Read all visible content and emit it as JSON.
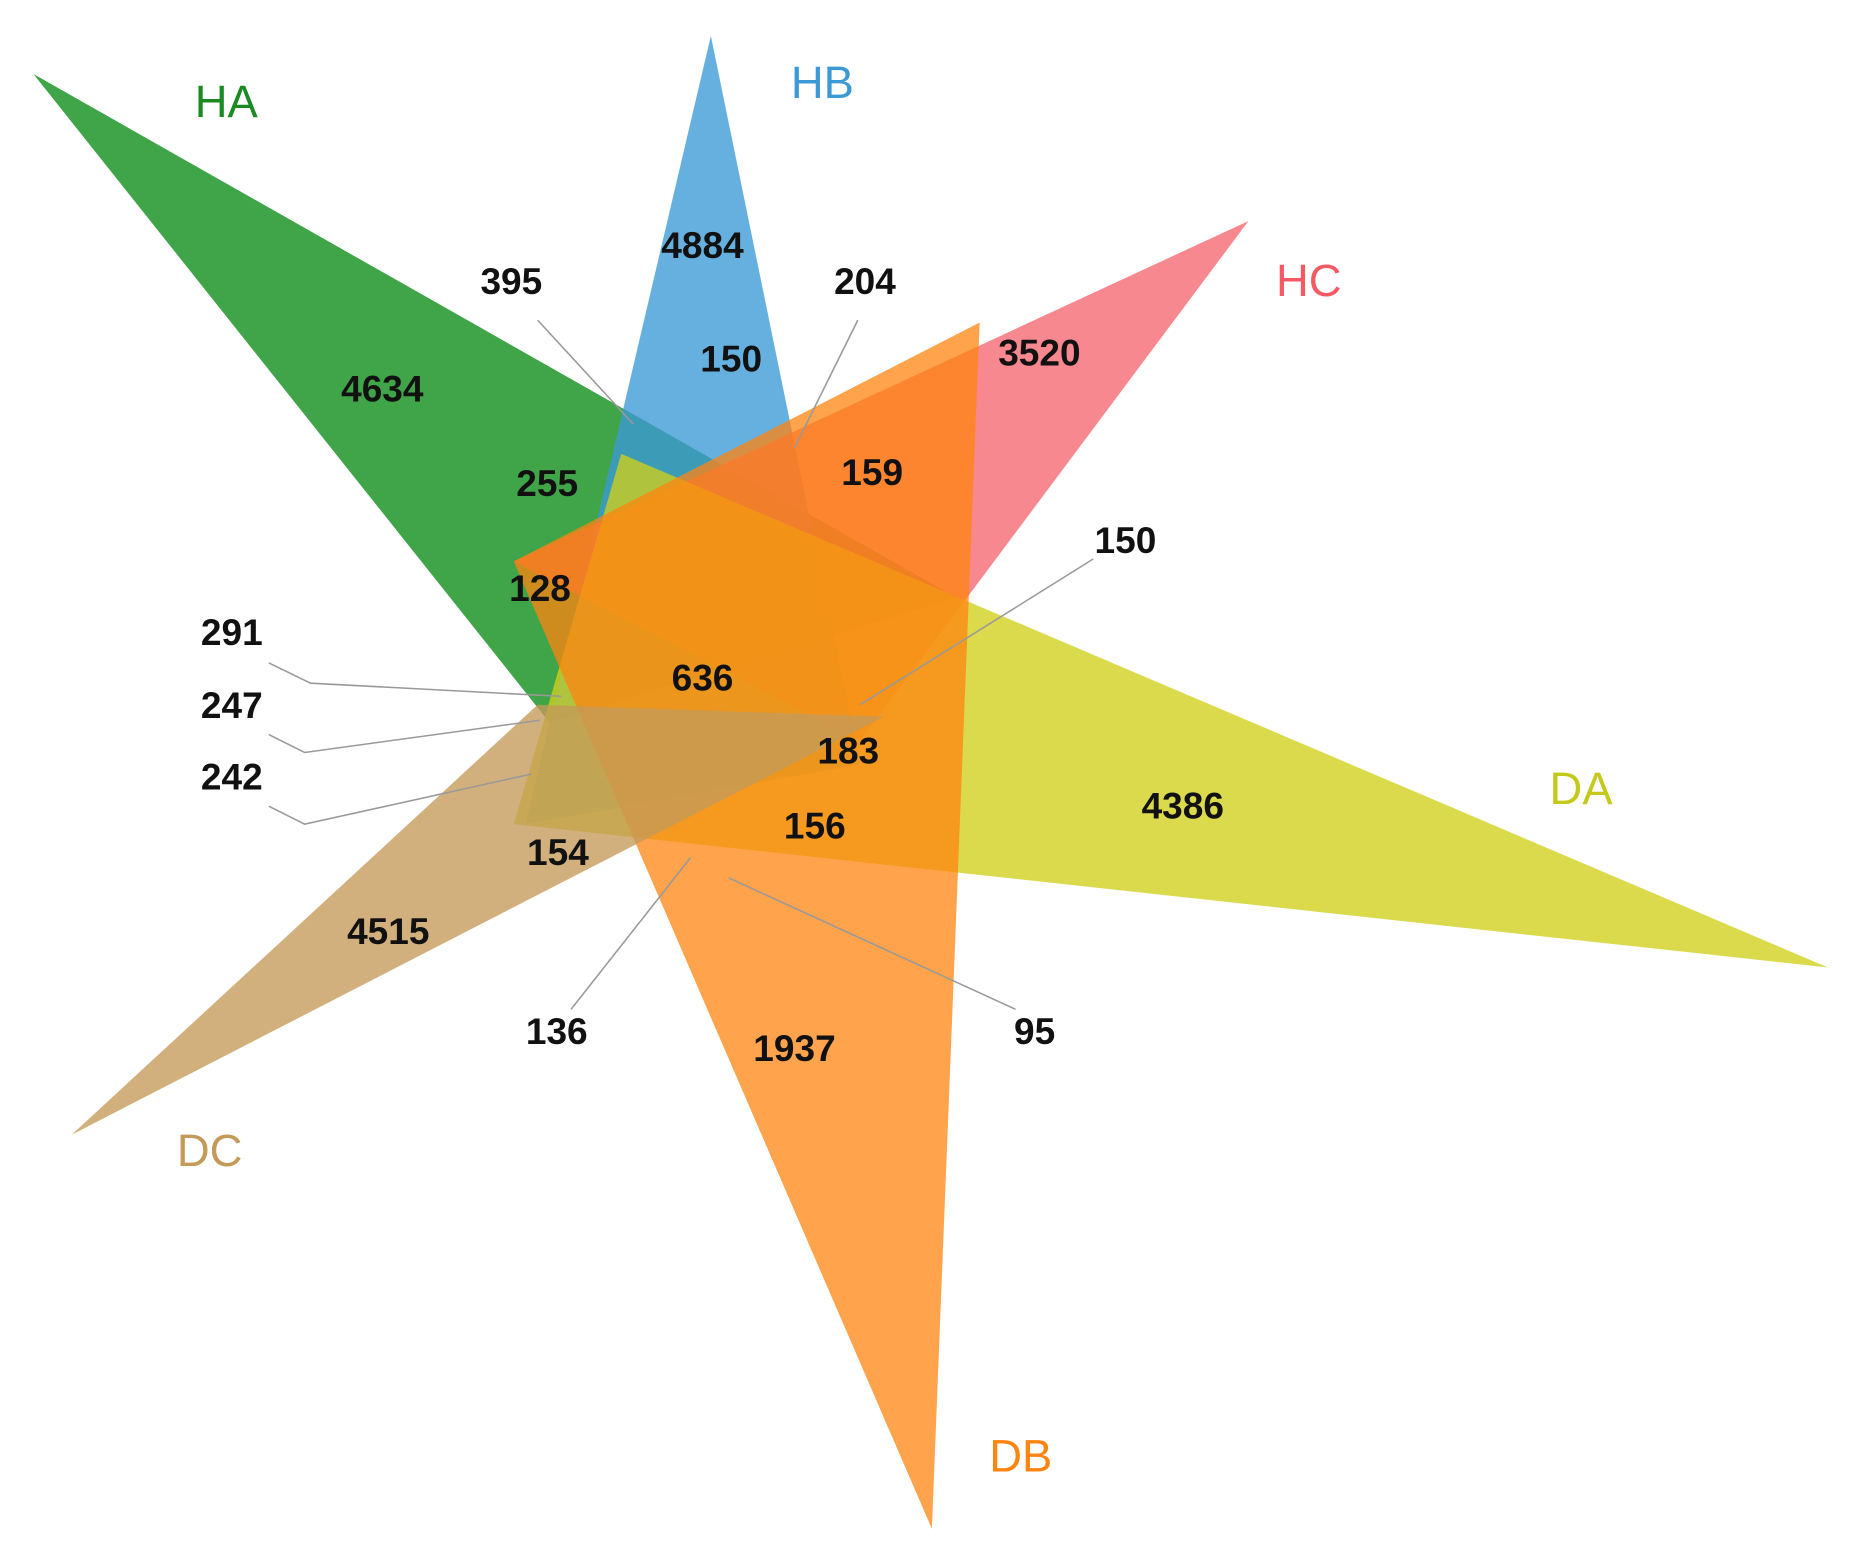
{
  "sets": [
    {
      "label": "HA"
    },
    {
      "label": "HB"
    },
    {
      "label": "HC"
    },
    {
      "label": "DA"
    },
    {
      "label": "DB"
    },
    {
      "label": "DC"
    }
  ],
  "regions": [
    {
      "value": 4634
    },
    {
      "value": 4884
    },
    {
      "value": 3520
    },
    {
      "value": 4386
    },
    {
      "value": 1937
    },
    {
      "value": 4515
    },
    {
      "value": 395
    },
    {
      "value": 204
    },
    {
      "value": 150
    },
    {
      "value": 255
    },
    {
      "value": 159
    },
    {
      "value": 128
    },
    {
      "value": 150
    },
    {
      "value": 291
    },
    {
      "value": 247
    },
    {
      "value": 242
    },
    {
      "value": 636
    },
    {
      "value": 183
    },
    {
      "value": 156
    },
    {
      "value": 154
    },
    {
      "value": 136
    },
    {
      "value": 95
    }
  ]
}
